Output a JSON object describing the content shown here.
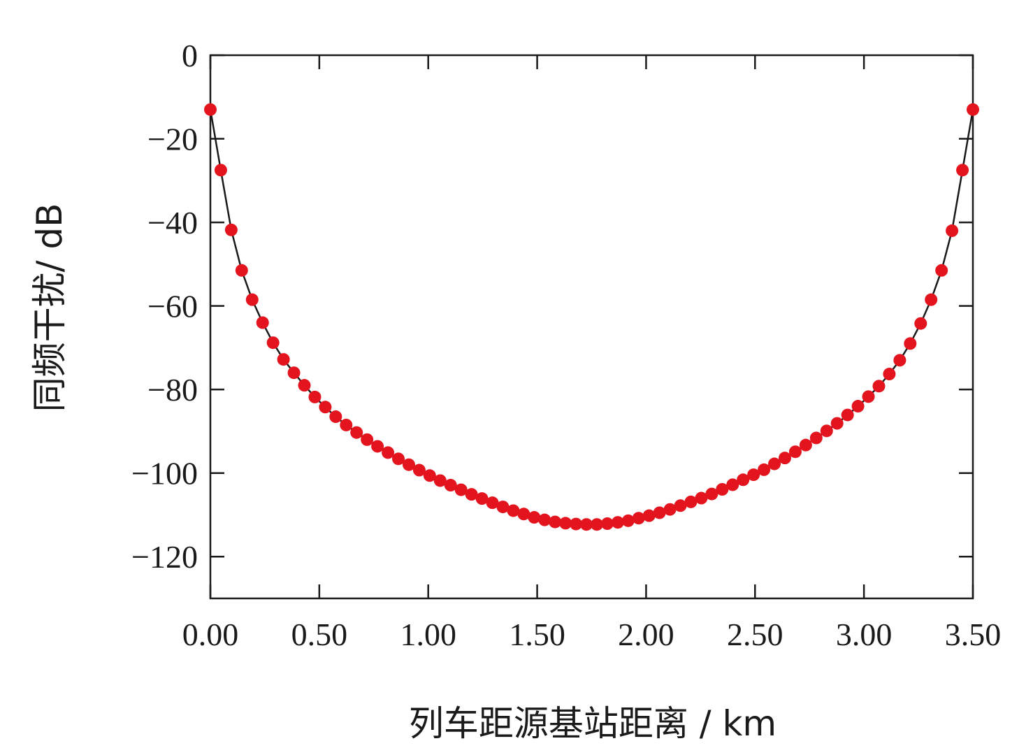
{
  "chart_data": {
    "type": "line",
    "title": "",
    "xlabel": "列车距源基站距离 / km",
    "ylabel": "同频干扰/ dB",
    "xlim": [
      0,
      3.5
    ],
    "ylim": [
      -130,
      0
    ],
    "xticks": [
      "0.00",
      "0.50",
      "1.00",
      "1.50",
      "2.00",
      "2.50",
      "3.00",
      "3.50"
    ],
    "yticks": [
      "0",
      "−20",
      "−40",
      "−60",
      "−80",
      "−100",
      "−120"
    ],
    "grid": false,
    "legend": "none",
    "series": [
      {
        "marker_color": "#e3141e",
        "line_color": "#1a1a1a",
        "x": [
          0.0,
          0.0479,
          0.0959,
          0.1438,
          0.1918,
          0.2397,
          0.2877,
          0.3356,
          0.3836,
          0.4315,
          0.4795,
          0.5274,
          0.5753,
          0.6233,
          0.6712,
          0.7192,
          0.7671,
          0.8151,
          0.863,
          0.911,
          0.9589,
          1.0068,
          1.0548,
          1.1027,
          1.1507,
          1.1986,
          1.2466,
          1.2945,
          1.3425,
          1.3904,
          1.4384,
          1.4863,
          1.5342,
          1.5822,
          1.6301,
          1.6781,
          1.726,
          1.774,
          1.8219,
          1.8699,
          1.9178,
          1.9658,
          2.0137,
          2.0616,
          2.1096,
          2.1575,
          2.2055,
          2.2534,
          2.3014,
          2.3493,
          2.3973,
          2.4452,
          2.4932,
          2.5411,
          2.589,
          2.637,
          2.6849,
          2.7329,
          2.7808,
          2.8288,
          2.8767,
          2.9247,
          2.9726,
          3.0205,
          3.0685,
          3.1164,
          3.1644,
          3.2123,
          3.2603,
          3.3082,
          3.3562,
          3.4041,
          3.4521,
          3.5
        ],
        "y": [
          -13.0,
          -27.5,
          -41.8,
          -51.5,
          -58.5,
          -64.0,
          -68.8,
          -72.8,
          -76.0,
          -79.0,
          -81.8,
          -84.2,
          -86.5,
          -88.5,
          -90.3,
          -92.0,
          -93.6,
          -95.1,
          -96.6,
          -98.0,
          -99.3,
          -100.6,
          -101.8,
          -102.9,
          -104.0,
          -105.1,
          -106.1,
          -107.1,
          -108.1,
          -109.0,
          -109.8,
          -110.6,
          -111.2,
          -111.7,
          -112.0,
          -112.2,
          -112.3,
          -112.3,
          -112.1,
          -111.8,
          -111.4,
          -110.8,
          -110.2,
          -109.5,
          -108.7,
          -107.8,
          -106.9,
          -106.0,
          -105.0,
          -103.9,
          -102.8,
          -101.6,
          -100.4,
          -99.2,
          -97.8,
          -96.4,
          -94.9,
          -93.3,
          -91.6,
          -89.9,
          -88.1,
          -86.1,
          -84.0,
          -81.7,
          -79.2,
          -76.3,
          -73.0,
          -69.0,
          -64.2,
          -58.5,
          -51.5,
          -42.0,
          -27.5,
          -13.0
        ]
      }
    ]
  }
}
